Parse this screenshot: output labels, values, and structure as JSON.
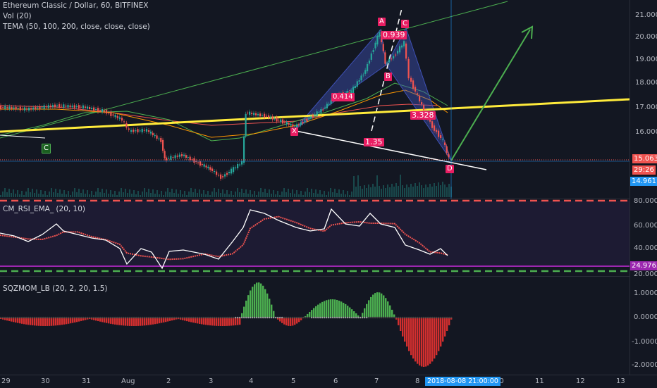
{
  "legend": {
    "symbol": "Ethereum Classic / Dollar, 60, BITFINEX",
    "vol": "Vol (20)",
    "tema": "TEMA (50, 100, 200, close, close, close)",
    "rsi": "CM_RSI_EMA_ (20, 10)",
    "sqz": "SQZMOM_LB (20, 2, 20, 1.5)"
  },
  "price_axis": {
    "ticks": [
      "21.000",
      "20.000",
      "19.000",
      "18.000",
      "17.000",
      "16.000",
      "15.000"
    ],
    "last_price": "15.063",
    "countdown": "29:26",
    "crosshair_price": "14.961",
    "colors": {
      "last": "#ef5350",
      "countdown": "#ef5350",
      "crosshair": "#2196f3"
    }
  },
  "rsi_axis": {
    "ticks": [
      "80.0000",
      "60.0000",
      "40.0000",
      "20.0000"
    ],
    "current": "24.9765",
    "current_color": "#9c27b0"
  },
  "sqz_axis": {
    "ticks": [
      "1.0000",
      "0.0000",
      "-1.0000",
      "-2.0000"
    ]
  },
  "time_axis": {
    "ticks": [
      "29",
      "30",
      "31",
      "Aug",
      "2",
      "3",
      "4",
      "5",
      "6",
      "7",
      "8",
      "10",
      "11",
      "12",
      "13"
    ],
    "crosshair_date": "2018-08-08 21:00:00"
  },
  "annotations": {
    "pattern_points": [
      "X",
      "A",
      "B",
      "C",
      "D"
    ],
    "ratios": [
      "0.939",
      "0.414",
      "3.328",
      "1.35"
    ],
    "left_label": "C"
  },
  "colors": {
    "bull": "#26a69a",
    "bear": "#ef5350",
    "yellow_line": "#ffeb3b",
    "pattern": "#e91e63",
    "arrow": "#4caf50"
  }
}
